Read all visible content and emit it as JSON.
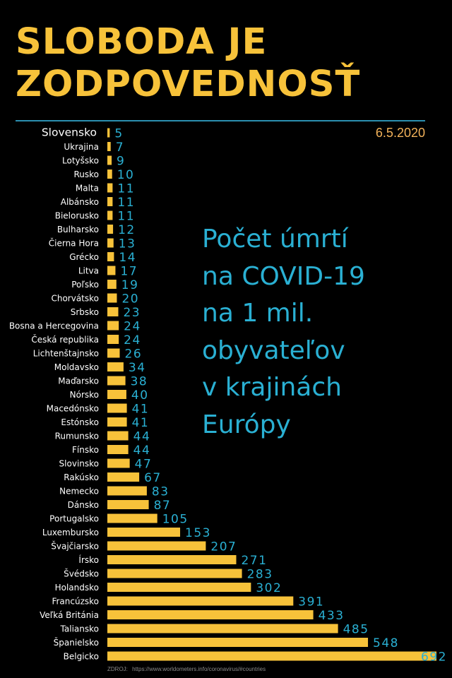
{
  "title": {
    "line1": "SLOBODA  JE",
    "line2": "ZODPOVEDNOSŤ"
  },
  "date": "6.5.2020",
  "subtitle": {
    "line1": "Počet úmrtí",
    "line2": "na COVID-19",
    "line3": "na 1 mil.",
    "line4": "obyvateľov",
    "line5": "v krajinách",
    "line6": "Európy"
  },
  "source": {
    "label": "ZDROJ:",
    "url": "https://www.worldometers.info/coronavirus/#countries"
  },
  "colors": {
    "bar": "#f7c23a",
    "value_text": "#2ab0d3",
    "title": "#f7c23a",
    "label_text": "#ffffff",
    "rule": "#2b8fb0"
  },
  "chart_data": {
    "type": "bar",
    "orientation": "horizontal",
    "categories": [
      "Slovensko",
      "Ukrajina",
      "Lotyšsko",
      "Rusko",
      "Malta",
      "Albánsko",
      "Bielorusko",
      "Bulharsko",
      "Čierna Hora",
      "Grécko",
      "Litva",
      "Poľsko",
      "Chorvátsko",
      "Srbsko",
      "Bosna a Hercegovina",
      "Česká republika",
      "Lichtenštajnsko",
      "Moldavsko",
      "Maďarsko",
      "Nórsko",
      "Macedónsko",
      "Estónsko",
      "Rumunsko",
      "Fínsko",
      "Slovinsko",
      "Rakúsko",
      "Nemecko",
      "Dánsko",
      "Portugalsko",
      "Luxembursko",
      "Švajčiarsko",
      "Írsko",
      "Švédsko",
      "Holandsko",
      "Francúzsko",
      "Veľká Británia",
      "Taliansko",
      "Španielsko",
      "Belgicko"
    ],
    "values": [
      5,
      7,
      9,
      10,
      11,
      11,
      11,
      12,
      13,
      14,
      17,
      19,
      20,
      23,
      24,
      24,
      26,
      34,
      38,
      40,
      41,
      41,
      44,
      44,
      47,
      67,
      83,
      87,
      105,
      153,
      207,
      271,
      283,
      302,
      391,
      433,
      485,
      548,
      692
    ],
    "highlight": "Slovensko",
    "xlim": [
      0,
      692
    ],
    "grid": false,
    "legend": "none"
  }
}
